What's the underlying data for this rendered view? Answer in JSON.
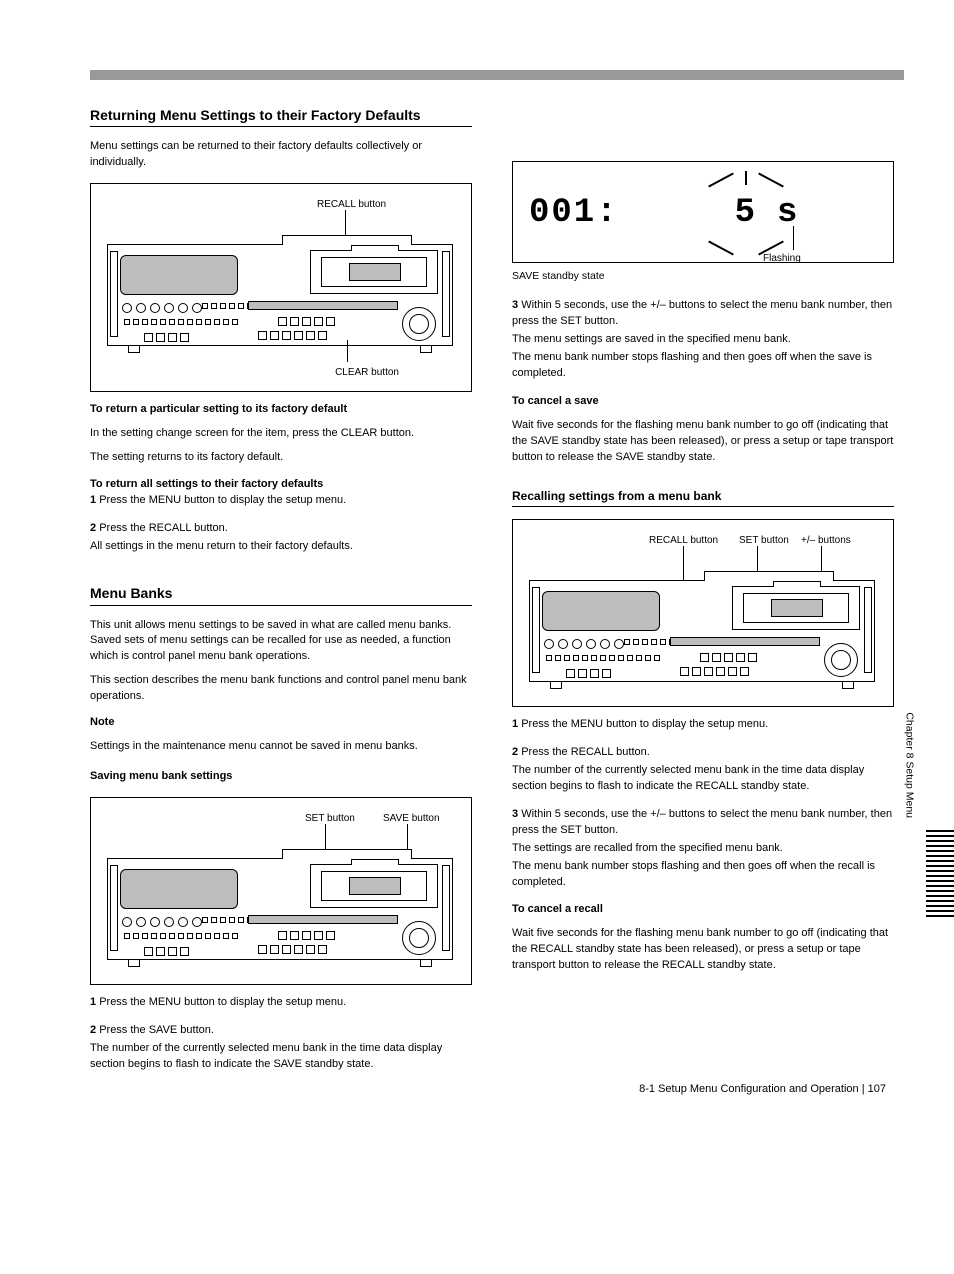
{
  "colors": {
    "page_bg": "#ffffff",
    "text": "#000000",
    "rule_gray": "#999999",
    "panel_gray": "#bdbdbd"
  },
  "typography": {
    "body_family": "Arial, Helvetica, sans-serif",
    "body_size_pt": 8,
    "heading_size_pt": 10.5,
    "lcd_family": "Courier New, monospace",
    "lcd_size_pt": 26
  },
  "left": {
    "sec1": {
      "heading": "Returning Menu Settings to their Factory Defaults",
      "intro": "Menu settings can be returned to their factory defaults collectively or individually.",
      "fig": {
        "label_recall": "RECALL button",
        "label_clear": "CLEAR button"
      },
      "sub1": {
        "title": "To return a particular setting to its factory default",
        "body1": "In the setting change screen for the item, press the CLEAR button.",
        "body2": "The setting returns to its factory default."
      },
      "sub2": {
        "title": "To return all settings to their factory defaults",
        "step1_num": "1",
        "step1_text": "Press the MENU button to display the setup menu.",
        "step2_num": "2",
        "step2_text": "Press the RECALL button.",
        "step2_sub": "All settings in the menu return to their factory defaults."
      }
    },
    "sec2": {
      "heading": "Menu Banks",
      "para1": "This unit allows menu settings to be saved in what are called menu banks. Saved sets of menu settings can be recalled for use as needed, a function which is control panel menu bank operations.",
      "para2": "This section describes the menu bank functions and control panel menu bank operations.",
      "note": "Note",
      "note_body": "Settings in the maintenance menu cannot be saved in menu banks.",
      "sub1": {
        "title": "Saving menu bank settings",
        "fig": {
          "label_set": "SET button",
          "label_save": "SAVE button"
        },
        "step1_num": "1",
        "step1_text": "Press the MENU button to display the setup menu.",
        "step2_num": "2",
        "step2_text": "Press the SAVE button.",
        "step2_sub": "The number of the currently selected menu bank in the time data display section begins to flash to indicate the SAVE standby state."
      }
    }
  },
  "right": {
    "lcd": {
      "left_text": "001:",
      "right_value": "5",
      "unit": "s",
      "flash_label": "Flashing",
      "caption": "SAVE standby state"
    },
    "step3_num": "3",
    "step3_text": "Within 5 seconds, use the +/– buttons to select the menu bank number, then press the SET button.",
    "step3_sub1": "The menu settings are saved in the specified menu bank.",
    "step3_sub2": "The menu bank number stops flashing and then goes off when the save is completed.",
    "cancel": {
      "title": "To cancel a save",
      "body": "Wait five seconds for the flashing menu bank number to go off (indicating that the SAVE standby state has been released), or press a setup or tape transport button to release the SAVE standby state."
    },
    "sec_recall": {
      "heading": "Recalling settings from a menu bank",
      "fig": {
        "label_recall": "RECALL button",
        "label_set": "SET button",
        "label_plusminus": "+/– buttons"
      },
      "step1_num": "1",
      "step1_text": "Press the MENU button to display the setup menu.",
      "step2_num": "2",
      "step2_text": "Press the RECALL button.",
      "step2_sub": "The number of the currently selected menu bank in the time data display section begins to flash to indicate the RECALL standby state.",
      "step3_num": "3",
      "step3_text": "Within 5 seconds, use the +/– buttons to select the menu bank number, then press the SET button.",
      "step3_sub1": "The settings are recalled from the specified menu bank.",
      "step3_sub2": "The menu bank number stops flashing and then goes off when the recall is completed.",
      "cancel": {
        "title": "To cancel a recall",
        "body": "Wait five seconds for the flashing menu bank number to go off (indicating that the RECALL standby state has been released), or press a setup or tape transport button to release the RECALL standby state."
      }
    }
  },
  "side": {
    "chapter": "Chapter 8  Setup Menu",
    "lines": 18
  },
  "footer": {
    "section": "8-1 Setup Menu Configuration and Operation | ",
    "page": "107"
  }
}
